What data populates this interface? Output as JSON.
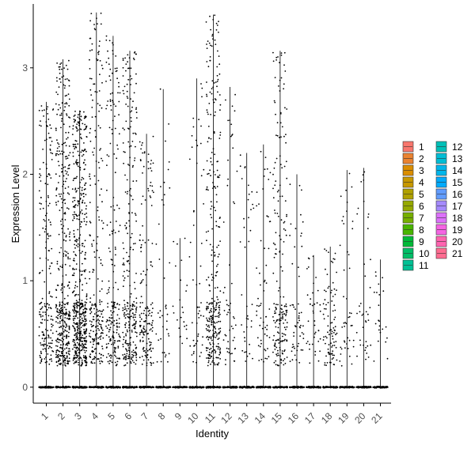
{
  "chart_data": {
    "type": "violin",
    "title": "",
    "xlabel": "Identity",
    "ylabel": "Expression Level",
    "ylim": [
      -0.15,
      3.6
    ],
    "yticks": [
      0,
      1,
      2,
      3
    ],
    "ytick_labels": [
      "0",
      "1",
      "2",
      "3"
    ],
    "categories": [
      "1",
      "2",
      "3",
      "4",
      "5",
      "6",
      "7",
      "8",
      "9",
      "10",
      "11",
      "12",
      "13",
      "14",
      "15",
      "16",
      "17",
      "18",
      "19",
      "20",
      "21"
    ],
    "colors": [
      "#F8766D",
      "#EA8331",
      "#DB8E00",
      "#C79800",
      "#B0A100",
      "#96A900",
      "#76AF00",
      "#49B500",
      "#00BA38",
      "#00BE67",
      "#00C094",
      "#00C0B8",
      "#00BDD5",
      "#00B6EB",
      "#00ABFD",
      "#619CFF",
      "#A58AFF",
      "#DC71FA",
      "#F564E3",
      "#FF64B0",
      "#FF6C91"
    ],
    "violin_max": [
      2.68,
      3.08,
      2.6,
      3.52,
      3.3,
      3.16,
      2.38,
      2.8,
      1.4,
      2.9,
      3.5,
      2.82,
      2.2,
      2.28,
      3.16,
      2.0,
      1.24,
      1.32,
      2.04,
      2.06,
      1.2
    ],
    "point_density": [
      200,
      420,
      560,
      240,
      210,
      280,
      160,
      40,
      24,
      55,
      320,
      55,
      40,
      60,
      200,
      55,
      40,
      90,
      45,
      40,
      22
    ],
    "legend": {
      "position": "right",
      "columns": [
        [
          "1",
          "2",
          "3",
          "4",
          "5",
          "6",
          "7",
          "8",
          "9",
          "10",
          "11"
        ],
        [
          "12",
          "13",
          "14",
          "15",
          "16",
          "17",
          "18",
          "19",
          "20",
          "21"
        ]
      ]
    },
    "grid": false,
    "points": "black jittered"
  }
}
